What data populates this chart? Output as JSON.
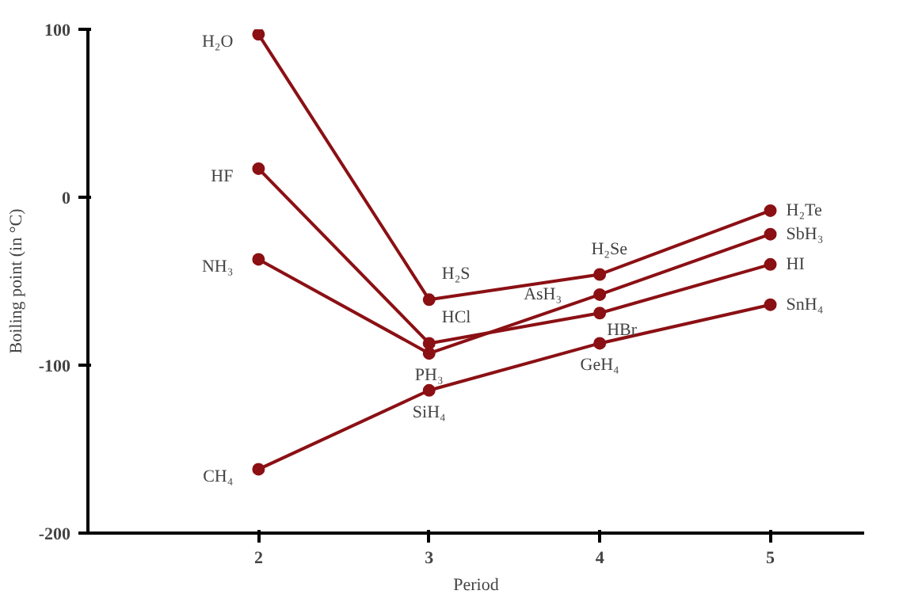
{
  "chart_data": {
    "type": "line",
    "xlabel": "Period",
    "ylabel": "Boiling point (in °C)",
    "x": [
      2,
      3,
      4,
      5
    ],
    "series": [
      {
        "color": "#8b1014",
        "values": [
          97,
          -61,
          -46,
          -8
        ]
      },
      {
        "color": "#8b1014",
        "values": [
          17,
          -87,
          -69,
          -40
        ]
      },
      {
        "color": "#8b1014",
        "values": [
          -37,
          -93,
          -58,
          -22
        ]
      },
      {
        "color": "#8b1014",
        "values": [
          -162,
          -115,
          -87,
          -64
        ]
      }
    ],
    "xlim": [
      1,
      5.55
    ],
    "ylim": [
      -200,
      100
    ],
    "xticks": [
      2,
      3,
      4,
      5
    ],
    "yticks": [
      100,
      0,
      -100,
      -200
    ],
    "grid": false,
    "marker": "circle",
    "line_style": "solid",
    "annotations": [
      {
        "text": "H₂O",
        "x": 2,
        "y": 97
      },
      {
        "text": "H₂S",
        "x": 3,
        "y": -61
      },
      {
        "text": "H₂Se",
        "x": 4,
        "y": -46
      },
      {
        "text": "H₂Te",
        "x": 5,
        "y": -8
      },
      {
        "text": "HF",
        "x": 2,
        "y": 17
      },
      {
        "text": "HCl",
        "x": 3,
        "y": -87
      },
      {
        "text": "HBr",
        "x": 4,
        "y": -69
      },
      {
        "text": "HI",
        "x": 5,
        "y": -40
      },
      {
        "text": "NH₃",
        "x": 2,
        "y": -37
      },
      {
        "text": "PH₃",
        "x": 3,
        "y": -93
      },
      {
        "text": "AsH₃",
        "x": 4,
        "y": -58
      },
      {
        "text": "SbH₃",
        "x": 5,
        "y": -22
      },
      {
        "text": "CH₄",
        "x": 2,
        "y": -162
      },
      {
        "text": "SiH₄",
        "x": 3,
        "y": -115
      },
      {
        "text": "GeH₄",
        "x": 4,
        "y": -87
      },
      {
        "text": "SnH₄",
        "x": 5,
        "y": -64
      }
    ]
  }
}
